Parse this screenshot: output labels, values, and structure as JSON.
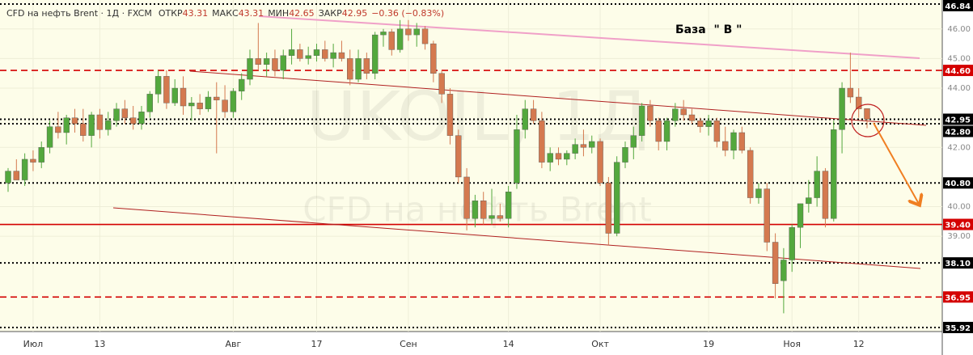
{
  "chart_data": {
    "type": "candlestick",
    "title": "CFD на нефть Brent · 1Д · FXCM",
    "ohlc_header": [
      {
        "label": "ОТКР",
        "value": "43.31"
      },
      {
        "label": "МАКС",
        "value": "43.31"
      },
      {
        "label": "МИН",
        "value": "42.65"
      },
      {
        "label": "ЗАКР",
        "value": "42.95"
      }
    ],
    "change": "−0.36 (−0.83%)",
    "watermark": [
      "UKOIL, 1Д",
      "CFD на нефть Brent"
    ],
    "annotation": "База  \" В \"",
    "up_color": "#53a83d",
    "down_color": "#d4794f",
    "ylim": [
      35.92,
      46.84
    ],
    "yticks": [
      {
        "value": 46,
        "label": "46.00"
      },
      {
        "value": 45,
        "label": "45.00"
      },
      {
        "value": 44,
        "label": "44.00"
      },
      {
        "value": 42,
        "label": "42.00"
      },
      {
        "value": 40,
        "label": "40.00"
      },
      {
        "value": 39,
        "label": "39.00"
      }
    ],
    "levels": [
      {
        "value": 46.84,
        "label": "46.84",
        "style": "dotted",
        "color": "#000000"
      },
      {
        "value": 44.6,
        "label": "44.60",
        "style": "dashed",
        "color": "#d40000"
      },
      {
        "value": 42.95,
        "label": "42.95",
        "style": "dotted",
        "color": "#000000"
      },
      {
        "value": 42.8,
        "label": "42.80",
        "style": "dotted",
        "color": "#000000"
      },
      {
        "value": 40.8,
        "label": "40.80",
        "style": "dotted",
        "color": "#000000"
      },
      {
        "value": 39.4,
        "label": "39.40",
        "style": "solid",
        "color": "#d40000"
      },
      {
        "value": 38.1,
        "label": "38.10",
        "style": "dotted",
        "color": "#000000"
      },
      {
        "value": 36.95,
        "label": "36.95",
        "style": "dashed",
        "color": "#d40000"
      },
      {
        "value": 35.92,
        "label": "35.92",
        "style": "dotted",
        "color": "#000000"
      }
    ],
    "categories": [
      null,
      null,
      null,
      "Июл",
      null,
      null,
      null,
      null,
      null,
      null,
      null,
      "13",
      null,
      null,
      null,
      null,
      null,
      null,
      null,
      null,
      null,
      null,
      null,
      null,
      null,
      null,
      null,
      "Авг",
      null,
      null,
      null,
      null,
      null,
      null,
      null,
      null,
      null,
      "17",
      null,
      null,
      null,
      null,
      null,
      null,
      null,
      null,
      null,
      null,
      "Сен",
      null,
      null,
      null,
      null,
      null,
      null,
      null,
      null,
      null,
      null,
      null,
      "14",
      null,
      null,
      null,
      null,
      null,
      null,
      null,
      null,
      null,
      null,
      "Окт",
      null,
      null,
      null,
      null,
      null,
      null,
      null,
      null,
      null,
      null,
      null,
      null,
      "19",
      null,
      null,
      null,
      null,
      null,
      null,
      null,
      null,
      null,
      "Ноя",
      null,
      null,
      null,
      null,
      null,
      null,
      null,
      "12",
      null
    ],
    "candles": [
      [
        40.8,
        41.3,
        40.5,
        41.2
      ],
      [
        41.2,
        41.6,
        40.9,
        40.9
      ],
      [
        40.9,
        41.8,
        40.7,
        41.6
      ],
      [
        41.6,
        41.9,
        41.2,
        41.5
      ],
      [
        41.5,
        42.2,
        41.3,
        42.0
      ],
      [
        42.0,
        42.9,
        41.8,
        42.7
      ],
      [
        42.7,
        43.2,
        42.3,
        42.5
      ],
      [
        42.5,
        43.1,
        42.1,
        43.0
      ],
      [
        43.0,
        43.3,
        42.5,
        42.8
      ],
      [
        42.8,
        43.3,
        42.2,
        42.4
      ],
      [
        42.4,
        43.2,
        42.0,
        43.1
      ],
      [
        43.1,
        43.3,
        42.3,
        42.6
      ],
      [
        42.6,
        43.2,
        42.4,
        42.9
      ],
      [
        42.9,
        43.5,
        42.7,
        43.3
      ],
      [
        43.3,
        43.6,
        42.8,
        43.0
      ],
      [
        43.0,
        43.4,
        42.6,
        42.8
      ],
      [
        42.8,
        43.4,
        42.6,
        43.2
      ],
      [
        43.2,
        43.9,
        43.0,
        43.8
      ],
      [
        43.8,
        44.6,
        43.5,
        44.4
      ],
      [
        44.4,
        44.6,
        43.3,
        43.5
      ],
      [
        43.5,
        44.3,
        43.4,
        44.0
      ],
      [
        44.0,
        44.4,
        43.1,
        43.4
      ],
      [
        43.4,
        43.7,
        42.9,
        43.5
      ],
      [
        43.5,
        43.8,
        43.1,
        43.3
      ],
      [
        43.3,
        43.9,
        43.2,
        43.7
      ],
      [
        43.7,
        44.2,
        41.8,
        43.6
      ],
      [
        43.6,
        44.1,
        43.0,
        43.2
      ],
      [
        43.2,
        44.0,
        43.0,
        43.9
      ],
      [
        43.9,
        44.5,
        43.6,
        44.3
      ],
      [
        44.3,
        45.3,
        44.1,
        45.0
      ],
      [
        45.0,
        46.2,
        44.6,
        44.8
      ],
      [
        44.8,
        45.2,
        44.4,
        45.0
      ],
      [
        45.0,
        45.3,
        44.4,
        44.6
      ],
      [
        44.6,
        45.3,
        44.3,
        45.1
      ],
      [
        45.1,
        46.0,
        44.8,
        45.3
      ],
      [
        45.3,
        45.5,
        44.9,
        45.0
      ],
      [
        45.0,
        45.4,
        44.8,
        45.1
      ],
      [
        45.1,
        45.5,
        44.9,
        45.3
      ],
      [
        45.3,
        45.6,
        44.9,
        45.0
      ],
      [
        45.0,
        45.5,
        44.7,
        45.2
      ],
      [
        45.2,
        45.6,
        44.9,
        45.0
      ],
      [
        45.0,
        45.3,
        44.1,
        44.3
      ],
      [
        44.3,
        45.3,
        44.2,
        45.0
      ],
      [
        45.0,
        45.2,
        44.3,
        44.5
      ],
      [
        44.5,
        45.9,
        44.3,
        45.8
      ],
      [
        45.8,
        46.0,
        45.4,
        45.9
      ],
      [
        45.9,
        46.0,
        45.1,
        45.3
      ],
      [
        45.3,
        46.3,
        45.2,
        46.0
      ],
      [
        46.0,
        46.3,
        45.6,
        45.8
      ],
      [
        45.8,
        46.2,
        45.4,
        46.0
      ],
      [
        46.0,
        46.1,
        45.3,
        45.5
      ],
      [
        45.5,
        45.6,
        44.2,
        44.5
      ],
      [
        44.5,
        44.6,
        43.5,
        43.8
      ],
      [
        43.8,
        44.0,
        42.1,
        42.4
      ],
      [
        42.4,
        42.6,
        40.8,
        41.0
      ],
      [
        41.0,
        41.3,
        39.2,
        39.6
      ],
      [
        39.6,
        40.4,
        39.3,
        40.2
      ],
      [
        40.2,
        40.5,
        39.4,
        39.6
      ],
      [
        39.6,
        40.6,
        39.4,
        39.7
      ],
      [
        39.7,
        40.1,
        39.5,
        39.6
      ],
      [
        39.6,
        40.7,
        39.3,
        40.5
      ],
      [
        40.8,
        43.1,
        40.6,
        42.6
      ],
      [
        42.6,
        43.6,
        42.3,
        43.3
      ],
      [
        43.3,
        43.6,
        42.8,
        42.9
      ],
      [
        42.9,
        43.2,
        41.3,
        41.5
      ],
      [
        41.5,
        42.0,
        41.2,
        41.8
      ],
      [
        41.8,
        42.0,
        41.4,
        41.6
      ],
      [
        41.6,
        41.9,
        41.4,
        41.8
      ],
      [
        41.8,
        42.3,
        41.6,
        42.1
      ],
      [
        42.1,
        42.6,
        41.7,
        42.0
      ],
      [
        42.0,
        42.4,
        41.8,
        42.2
      ],
      [
        42.2,
        42.3,
        40.7,
        40.8
      ],
      [
        40.8,
        41.0,
        38.7,
        39.1
      ],
      [
        39.1,
        41.7,
        39.0,
        41.5
      ],
      [
        41.5,
        42.2,
        41.3,
        42.0
      ],
      [
        42.0,
        42.7,
        41.6,
        42.4
      ],
      [
        42.4,
        43.5,
        42.2,
        43.4
      ],
      [
        43.4,
        43.6,
        42.7,
        42.9
      ],
      [
        42.9,
        43.0,
        41.9,
        42.2
      ],
      [
        42.2,
        43.0,
        41.9,
        42.9
      ],
      [
        42.9,
        43.5,
        42.7,
        43.3
      ],
      [
        43.3,
        43.6,
        42.9,
        43.1
      ],
      [
        43.1,
        43.3,
        42.8,
        42.9
      ],
      [
        42.9,
        43.0,
        42.5,
        42.7
      ],
      [
        42.7,
        43.1,
        42.4,
        42.9
      ],
      [
        42.9,
        43.0,
        42.0,
        42.2
      ],
      [
        42.2,
        42.7,
        41.7,
        41.9
      ],
      [
        41.9,
        42.6,
        41.6,
        42.5
      ],
      [
        42.5,
        42.7,
        41.8,
        41.9
      ],
      [
        41.9,
        42.0,
        40.1,
        40.3
      ],
      [
        40.3,
        40.8,
        40.1,
        40.6
      ],
      [
        40.6,
        40.8,
        38.5,
        38.8
      ],
      [
        38.8,
        39.1,
        36.9,
        37.4
      ],
      [
        37.5,
        38.6,
        36.4,
        38.2
      ],
      [
        38.2,
        39.4,
        37.8,
        39.3
      ],
      [
        39.3,
        40.1,
        38.6,
        40.1
      ],
      [
        40.1,
        40.9,
        39.8,
        40.3
      ],
      [
        40.3,
        41.7,
        40.0,
        41.2
      ],
      [
        41.2,
        41.3,
        39.3,
        39.6
      ],
      [
        39.6,
        42.9,
        39.5,
        42.6
      ],
      [
        42.6,
        44.2,
        41.8,
        44.0
      ],
      [
        44.0,
        45.2,
        43.5,
        43.7
      ],
      [
        43.7,
        44.0,
        43.0,
        43.3
      ],
      [
        43.31,
        43.31,
        42.65,
        42.95
      ]
    ]
  }
}
